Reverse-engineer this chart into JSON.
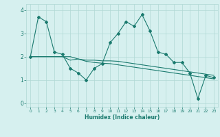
{
  "xlabel": "Humidex (Indice chaleur)",
  "x": [
    0,
    1,
    2,
    3,
    4,
    5,
    6,
    7,
    8,
    9,
    10,
    11,
    12,
    13,
    14,
    15,
    16,
    17,
    18,
    19,
    20,
    21,
    22,
    23
  ],
  "line1": [
    2.0,
    3.7,
    3.5,
    2.2,
    2.1,
    1.5,
    1.3,
    1.0,
    1.5,
    1.7,
    2.6,
    3.0,
    3.5,
    3.3,
    3.8,
    3.1,
    2.2,
    2.1,
    1.75,
    1.75,
    1.3,
    0.2,
    1.2,
    1.1
  ],
  "line2": [
    2.0,
    2.0,
    2.0,
    2.0,
    2.0,
    1.85,
    1.9,
    1.85,
    1.85,
    1.82,
    1.82,
    1.8,
    1.75,
    1.7,
    1.65,
    1.6,
    1.55,
    1.5,
    1.45,
    1.4,
    1.35,
    1.3,
    1.25,
    1.2
  ],
  "line3": [
    2.0,
    2.0,
    2.0,
    2.0,
    2.0,
    2.0,
    1.9,
    1.8,
    1.75,
    1.72,
    1.7,
    1.65,
    1.6,
    1.55,
    1.5,
    1.45,
    1.4,
    1.35,
    1.3,
    1.25,
    1.2,
    1.15,
    1.1,
    1.05
  ],
  "line_color": "#1a7a6e",
  "bg_color": "#d6f0ef",
  "grid_color": "#b0d8d5",
  "ylim": [
    -0.15,
    4.25
  ],
  "xlim": [
    -0.5,
    23.5
  ],
  "yticks": [
    0,
    1,
    2,
    3,
    4
  ],
  "xticks": [
    0,
    1,
    2,
    3,
    4,
    5,
    6,
    7,
    8,
    9,
    10,
    11,
    12,
    13,
    14,
    15,
    16,
    17,
    18,
    19,
    20,
    21,
    22,
    23
  ]
}
